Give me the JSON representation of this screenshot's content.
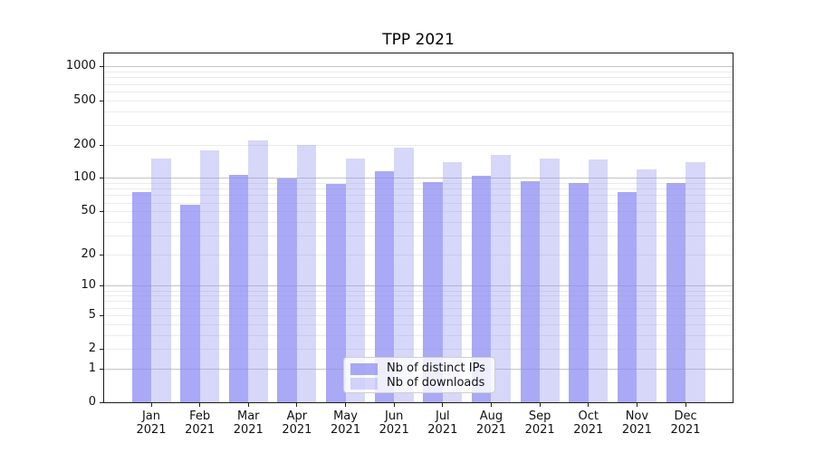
{
  "chart_data": {
    "type": "bar",
    "title": "TPP 2021",
    "xlabel": "",
    "ylabel": "",
    "categories": [
      "Jan 2021",
      "Feb 2021",
      "Mar 2021",
      "Apr 2021",
      "May 2021",
      "Jun 2021",
      "Jul 2021",
      "Aug 2021",
      "Sep 2021",
      "Oct 2021",
      "Nov 2021",
      "Dec 2021"
    ],
    "series": [
      {
        "name": "Nb of distinct IPs",
        "color": "rgba(140,140,242,0.75)",
        "values": [
          74,
          57,
          107,
          100,
          89,
          116,
          92,
          105,
          94,
          90,
          74,
          90
        ]
      },
      {
        "name": "Nb of downloads",
        "color": "rgba(150,150,240,0.38)",
        "values": [
          151,
          179,
          219,
          198,
          151,
          188,
          140,
          163,
          150,
          146,
          120,
          140
        ]
      }
    ],
    "yscale": "symlog",
    "yticks": [
      0,
      1,
      2,
      5,
      10,
      20,
      50,
      100,
      200,
      500,
      1000
    ],
    "ylim": [
      0,
      1300
    ],
    "grid": {
      "major_at": [
        1,
        10,
        100,
        1000
      ],
      "major_color": "#c4c4c4",
      "minor_color": "#ebebeb"
    },
    "legend": {
      "position": "lower-center-inside"
    }
  }
}
